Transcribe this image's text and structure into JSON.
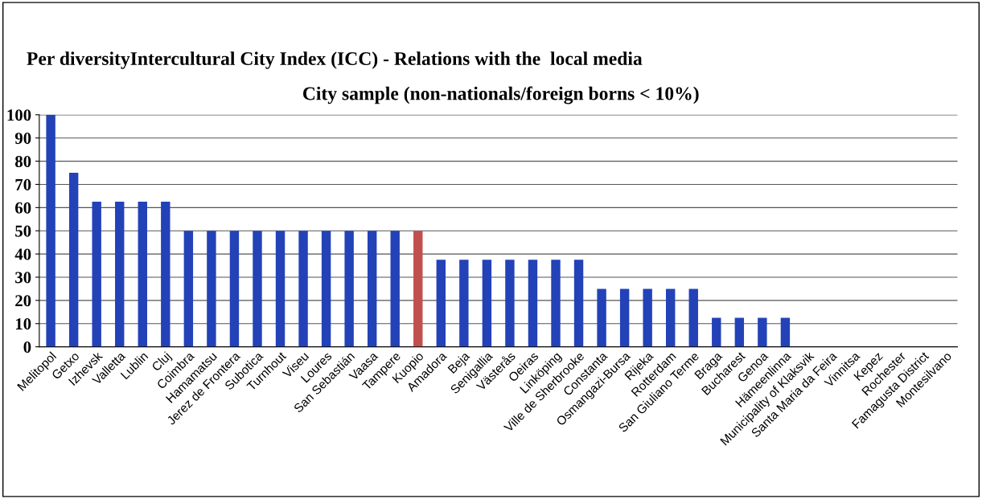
{
  "chart_data": {
    "type": "bar",
    "title": "Per diversityIntercultural City Index (ICC) - Relations with the  local media",
    "subtitle": "City sample (non-nationals/foreign borns < 10%)",
    "categories": [
      "Melitopol",
      "Getxo",
      "Izhevsk",
      "Valletta",
      "Lublin",
      "Cluj",
      "Coimbra",
      "Hamamatsu",
      "Jerez de Frontera",
      "Subotica",
      "Turnhout",
      "Viseu",
      "Loures",
      "San Sebastián",
      "Vaasa",
      "Tampere",
      "Kuopio",
      "Amadora",
      "Beja",
      "Senigallia",
      "Västerås",
      "Oeiras",
      "Linköping",
      "Ville de Sherbrooke",
      "Constanta",
      "Osmangazi-Bursa",
      "Rijeka",
      "Rotterdam",
      "San Giuliano Terme",
      "Braga",
      "Bucharest",
      "Genoa",
      "Hämeenlinna",
      "Municipality of Klaksvik",
      "Santa Maria da Feira",
      "Vinnitsa",
      "Kepez",
      "Rochester",
      "Famagusta District",
      "Montesilvano"
    ],
    "values": [
      100,
      75,
      62.5,
      62.5,
      62.5,
      62.5,
      50,
      50,
      50,
      50,
      50,
      50,
      50,
      50,
      50,
      50,
      50,
      37.5,
      37.5,
      37.5,
      37.5,
      37.5,
      37.5,
      37.5,
      25,
      25,
      25,
      25,
      25,
      12.5,
      12.5,
      12.5,
      12.5,
      0,
      0,
      0,
      0,
      0,
      0,
      0
    ],
    "colors": [
      "#2342b8",
      "#2342b8",
      "#2342b8",
      "#2342b8",
      "#2342b8",
      "#2342b8",
      "#2342b8",
      "#2342b8",
      "#2342b8",
      "#2342b8",
      "#2342b8",
      "#2342b8",
      "#2342b8",
      "#2342b8",
      "#2342b8",
      "#2342b8",
      "#c0504d",
      "#2342b8",
      "#2342b8",
      "#2342b8",
      "#2342b8",
      "#2342b8",
      "#2342b8",
      "#2342b8",
      "#2342b8",
      "#2342b8",
      "#2342b8",
      "#2342b8",
      "#2342b8",
      "#2342b8",
      "#2342b8",
      "#2342b8",
      "#2342b8",
      "#2342b8",
      "#2342b8",
      "#2342b8",
      "#2342b8",
      "#2342b8",
      "#2342b8",
      "#2342b8"
    ],
    "ylim": [
      0,
      100
    ],
    "yticks": [
      0,
      10,
      20,
      30,
      40,
      50,
      60,
      70,
      80,
      90,
      100
    ],
    "grid": "y"
  }
}
